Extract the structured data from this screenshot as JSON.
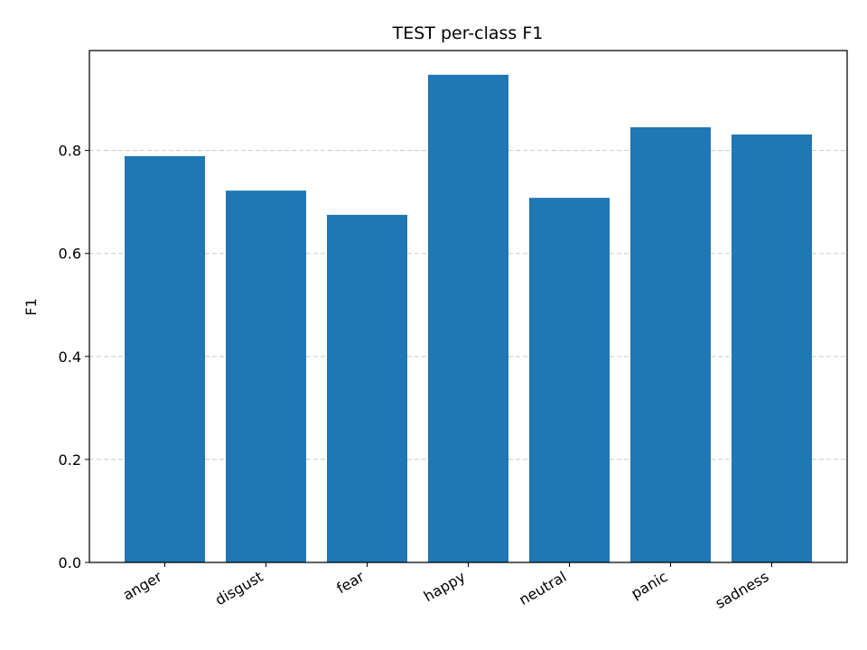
{
  "chart_data": {
    "type": "bar",
    "title": "TEST per-class F1",
    "xlabel": "",
    "ylabel": "F1",
    "categories": [
      "anger",
      "disgust",
      "fear",
      "happy",
      "neutral",
      "panic",
      "sadness"
    ],
    "values": [
      0.789,
      0.722,
      0.675,
      0.947,
      0.708,
      0.845,
      0.831
    ],
    "ylim": [
      0,
      0.994
    ],
    "yticks": [
      0.0,
      0.2,
      0.4,
      0.6,
      0.8
    ],
    "ytick_labels": [
      "0.0",
      "0.2",
      "0.4",
      "0.6",
      "0.8"
    ],
    "grid": "y, dashed",
    "bar_color": "#1f77b4",
    "grid_color": "#cccccc"
  }
}
